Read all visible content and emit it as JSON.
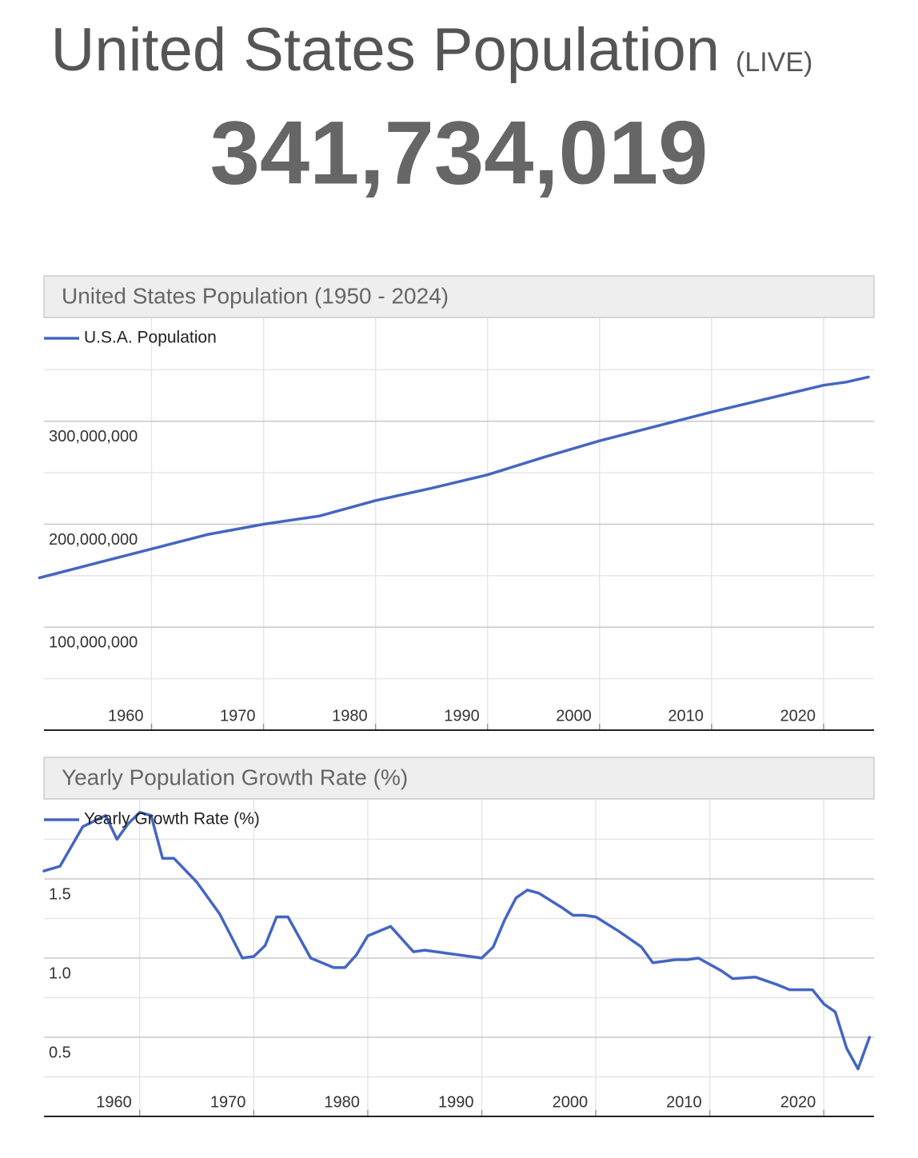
{
  "header": {
    "title": "United States Population",
    "live": "(LIVE)",
    "counter": "341,734,019"
  },
  "chart_data": [
    {
      "type": "line",
      "title": "United States Population (1950 - 2024)",
      "x": [
        1950,
        1955,
        1960,
        1965,
        1970,
        1975,
        1980,
        1985,
        1990,
        1995,
        2000,
        2005,
        2010,
        2015,
        2020,
        2022,
        2024
      ],
      "series": [
        {
          "name": "U.S.A. Population",
          "color": "#4466c2",
          "values": [
            148000000,
            162000000,
            176000000,
            190000000,
            200000000,
            208000000,
            223000000,
            235000000,
            248000000,
            265000000,
            281000000,
            295000000,
            309000000,
            322000000,
            335000000,
            338000000,
            343000000
          ]
        }
      ],
      "xlim": [
        1950.4,
        2024.5
      ],
      "xticks": [
        1960,
        1970,
        1980,
        1990,
        2000,
        2010,
        2020
      ],
      "ylim": [
        0,
        400000000
      ],
      "yticks": [
        {
          "value": 100000000,
          "label": "100,000,000"
        },
        {
          "value": 200000000,
          "label": "200,000,000"
        },
        {
          "value": 300000000,
          "label": "300,000,000"
        }
      ],
      "minor_yticks": [
        50000000,
        150000000,
        250000000,
        350000000
      ],
      "grid": true,
      "legend": "top-left"
    },
    {
      "type": "line",
      "title": "Yearly Population Growth Rate (%)",
      "x": [
        1951.6,
        1953,
        1955,
        1957,
        1958,
        1959,
        1960,
        1961,
        1962,
        1963,
        1965,
        1967,
        1969,
        1970,
        1971,
        1972,
        1973,
        1975,
        1977,
        1978,
        1979,
        1980,
        1982,
        1983,
        1984,
        1985,
        1987,
        1989,
        1990,
        1991,
        1992,
        1993,
        1994,
        1995,
        1997,
        1998,
        1999,
        2000,
        2002,
        2004,
        2005,
        2007,
        2008,
        2009,
        2011,
        2012,
        2014,
        2016,
        2017,
        2019,
        2020,
        2021,
        2022,
        2023,
        2024
      ],
      "series": [
        {
          "name": "Yearly Growth Rate (%)",
          "color": "#4466c2",
          "values": [
            1.55,
            1.58,
            1.83,
            1.9,
            1.75,
            1.85,
            1.92,
            1.9,
            1.63,
            1.63,
            1.48,
            1.28,
            1.0,
            1.01,
            1.08,
            1.26,
            1.26,
            1.0,
            0.94,
            0.94,
            1.02,
            1.14,
            1.2,
            1.12,
            1.04,
            1.05,
            1.03,
            1.01,
            1.0,
            1.07,
            1.24,
            1.38,
            1.43,
            1.41,
            1.32,
            1.27,
            1.27,
            1.26,
            1.17,
            1.07,
            0.97,
            0.99,
            0.99,
            1.0,
            0.92,
            0.87,
            0.88,
            0.83,
            0.8,
            0.8,
            0.71,
            0.66,
            0.43,
            0.3,
            0.5
          ]
        }
      ],
      "xlim": [
        1951.6,
        2024.4
      ],
      "xticks": [
        1960,
        1970,
        1980,
        1990,
        2000,
        2010,
        2020
      ],
      "ylim": [
        0,
        2
      ],
      "yticks": [
        0.5,
        {
          "value": 1,
          "label": "1.0"
        },
        1.5
      ],
      "minor_yticks": [
        0.25,
        0.75,
        1.25,
        1.75
      ],
      "grid": true,
      "legend": "top-left"
    }
  ]
}
